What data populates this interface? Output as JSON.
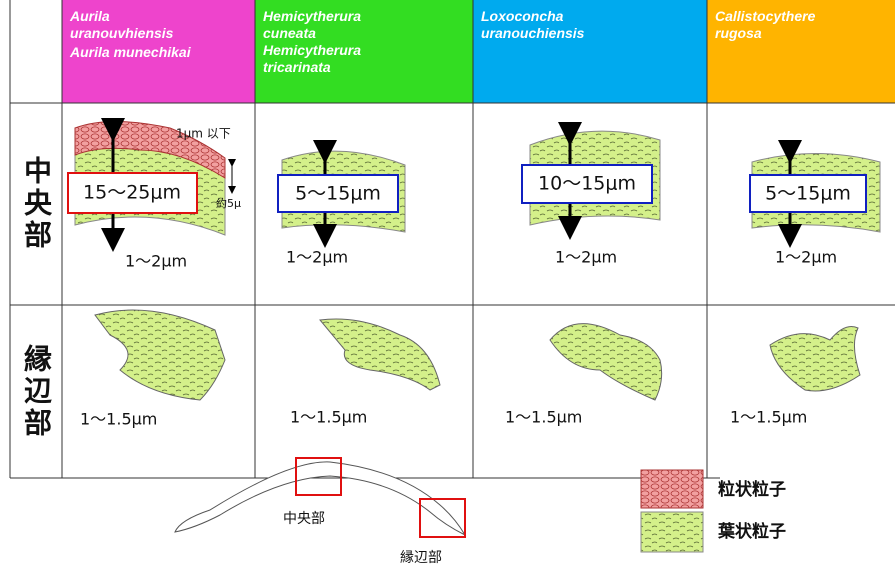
{
  "header": {
    "columns": [
      {
        "species": [
          "Aurila uranouvhiensis",
          "Aurila munechikai"
        ]
      },
      {
        "species": [
          "Hemicytherura cuneata",
          "Hemicytherura tricarinata"
        ]
      },
      {
        "species": [
          "Loxoconcha uranouchiensis"
        ]
      },
      {
        "species": [
          "Callistocythere rugosa"
        ]
      }
    ]
  },
  "rows": [
    {
      "label": "中央部",
      "cells": [
        {
          "thickness": "15〜25μm",
          "particle": "1〜2μm",
          "notes": [
            "1μm 以下",
            "約5μ"
          ]
        },
        {
          "thickness": "5〜15μm",
          "particle": "1〜2μm"
        },
        {
          "thickness": "10〜15μm",
          "particle": "1〜2μm"
        },
        {
          "thickness": "5〜15μm",
          "particle": "1〜2μm"
        }
      ]
    },
    {
      "label": "縁辺部",
      "cells": [
        {
          "particle": "1〜1.5μm"
        },
        {
          "particle": "1〜1.5μm"
        },
        {
          "particle": "1〜1.5μm"
        },
        {
          "particle": "1〜1.5μm"
        }
      ]
    }
  ],
  "shell_diagram": {
    "center_label": "中央部",
    "edge_label": "縁辺部"
  },
  "legend": [
    "粒状粒子",
    "葉状粒子"
  ]
}
